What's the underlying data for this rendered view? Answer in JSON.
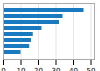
{
  "chart_data": {
    "type": "bar",
    "orientation": "horizontal",
    "categories": [
      null,
      null,
      null,
      null,
      null,
      null,
      null,
      null
    ],
    "values": [
      46,
      34,
      32,
      22,
      17,
      16,
      15,
      10
    ],
    "color": "#1a7abf",
    "xlim": [
      0,
      52
    ],
    "xticks": [
      0,
      10,
      20,
      30,
      40,
      50
    ],
    "grid": true,
    "tick_labels": "x"
  }
}
